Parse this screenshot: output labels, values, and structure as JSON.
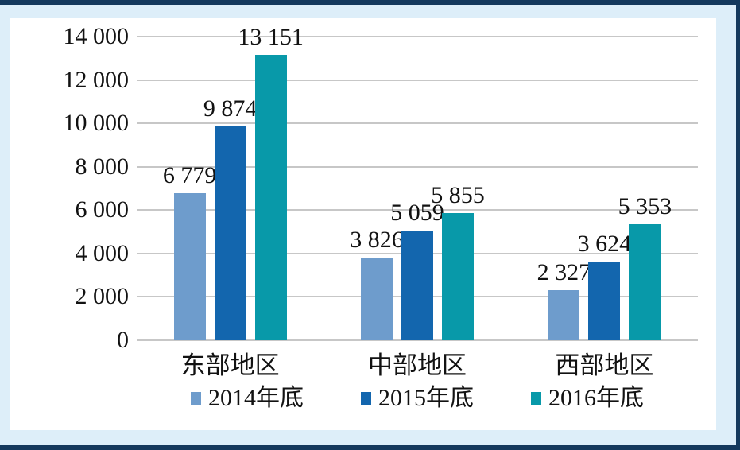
{
  "frame": {
    "border_color": "#14395d",
    "outer_background": "#ddeef9",
    "panel_background": "#ffffff"
  },
  "chart_data": {
    "type": "bar",
    "title": "",
    "xlabel": "",
    "ylabel": "",
    "categories": [
      "东部地区",
      "中部地区",
      "西部地区"
    ],
    "series": [
      {
        "name": "2014年底",
        "color": "#6e9ccc",
        "values": [
          6779,
          3826,
          2327
        ],
        "value_labels": [
          "6 779",
          "3 826",
          "2 327"
        ]
      },
      {
        "name": "2015年底",
        "color": "#1366ae",
        "values": [
          9874,
          5059,
          3624
        ],
        "value_labels": [
          "9 874",
          "5 059",
          "3 624"
        ]
      },
      {
        "name": "2016年底",
        "color": "#0899a9",
        "values": [
          13151,
          5855,
          5353
        ],
        "value_labels": [
          "13 151",
          "5 855",
          "5 353"
        ]
      }
    ],
    "ylim": [
      0,
      14000
    ],
    "ytick_interval": 2000,
    "ytick_labels": [
      "14 000",
      "12 000",
      "10 000",
      "8 000",
      "6 000",
      "4 000",
      "2 000",
      "0"
    ],
    "grid": true,
    "gridline_color": "#c7c7c7",
    "legend_position": "bottom"
  }
}
